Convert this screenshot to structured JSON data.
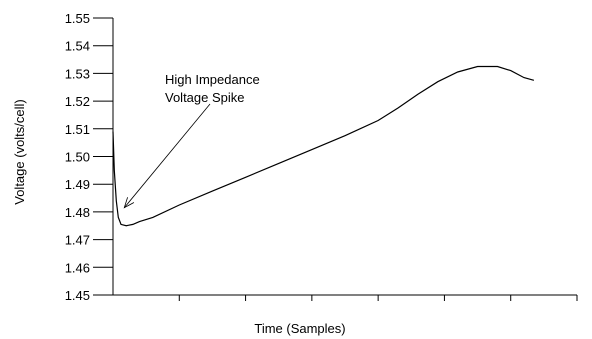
{
  "chart_data": {
    "type": "line",
    "xlabel": "Time (Samples)",
    "ylabel": "Voltage (volts/cell)",
    "ylim": [
      1.45,
      1.55
    ],
    "yticks": [
      "1.55",
      "1.54",
      "1.53",
      "1.52",
      "1.51",
      "1.50",
      "1.49",
      "1.48",
      "1.47",
      "1.46",
      "1.45"
    ],
    "xlim": [
      0,
      7
    ],
    "x_tick_count": 7,
    "x_tick_labels_shown": false,
    "grid": false,
    "annotation": {
      "lines": [
        "High Impedance",
        "Voltage Spike"
      ],
      "arrow_target": {
        "x": 0.17,
        "y": 1.4815
      }
    },
    "series": [
      {
        "x": [
          0,
          0.02,
          0.05,
          0.08,
          0.12,
          0.2,
          0.3,
          0.4,
          0.6,
          1,
          1.5,
          2,
          2.5,
          3,
          3.5,
          4,
          4.3,
          4.6,
          4.9,
          5.2,
          5.5,
          5.8,
          6.0,
          6.2,
          6.35
        ],
        "y": [
          1.509,
          1.495,
          1.484,
          1.478,
          1.4755,
          1.475,
          1.4755,
          1.4765,
          1.478,
          1.4825,
          1.4875,
          1.4925,
          1.4975,
          1.5025,
          1.5075,
          1.513,
          1.5175,
          1.5225,
          1.527,
          1.5305,
          1.5325,
          1.5325,
          1.531,
          1.5285,
          1.5275
        ]
      }
    ]
  }
}
